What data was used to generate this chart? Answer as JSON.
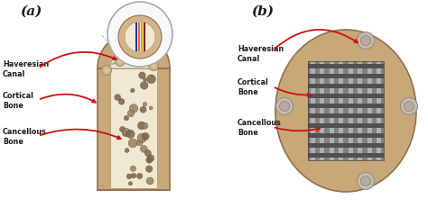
{
  "bg_color": "#ffffff",
  "label_color": "#1a1a1a",
  "bone_tan": "#c8a878",
  "bone_tan2": "#d4b48a",
  "bone_light": "#e8d8b8",
  "cancellous_color": "#f0e8d0",
  "cancellous_spot_dark": "#7a6545",
  "cancellous_spot_med": "#9a8060",
  "cortical_wall": "#c8a878",
  "scaffold_bg": "#808080",
  "scaffold_bar_dark": "#505050",
  "scaffold_bar_light": "#b0b0b0",
  "haversian_fill": "#c8b890",
  "haversian_edge": "#a09070",
  "arrow_color": "#cc1111",
  "zoom_circle_bg": "#f8f8f8",
  "zoom_line_color": "#bbbbbb",
  "fiber_blue": "#1a3a8a",
  "fiber_orange": "#e87020",
  "fiber_yellow": "#c8b000",
  "fiber_red": "#8a1010",
  "label_a": "(a)",
  "label_b": "(b)",
  "text_haversian": "Haveresian\nCanal",
  "text_cortical": "Cortical\nBone",
  "text_cancellous": "Cancellous\nBone",
  "fig_width": 4.74,
  "fig_height": 2.32
}
